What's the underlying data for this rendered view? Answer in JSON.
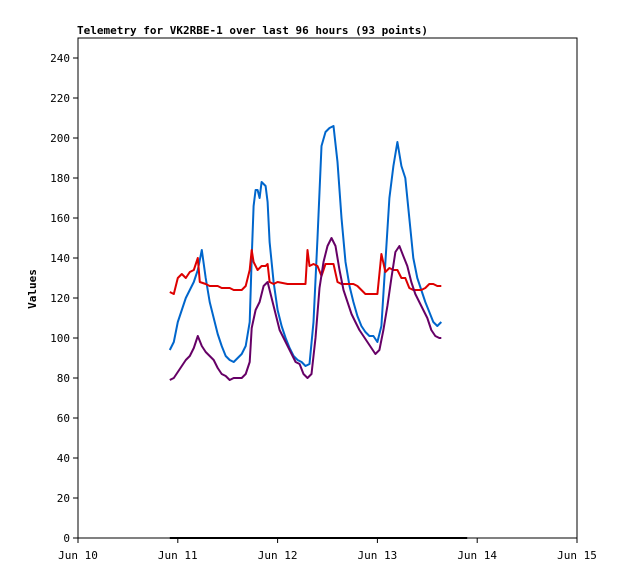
{
  "chart_data": {
    "type": "line",
    "title": "Telemetry for VK2RBE-1 over last 96 hours (93 points)",
    "xlabel": "",
    "ylabel": "Values",
    "xlim": [
      10,
      15
    ],
    "ylim": [
      0,
      250
    ],
    "x_ticks": [
      {
        "value": 10,
        "label": "Jun 10"
      },
      {
        "value": 11,
        "label": "Jun 11"
      },
      {
        "value": 12,
        "label": "Jun 12"
      },
      {
        "value": 13,
        "label": "Jun 13"
      },
      {
        "value": 14,
        "label": "Jun 14"
      },
      {
        "value": 15,
        "label": "Jun 15"
      }
    ],
    "y_ticks": [
      0,
      20,
      40,
      60,
      80,
      100,
      120,
      140,
      160,
      180,
      200,
      220,
      240
    ],
    "grid": false,
    "legend": "none",
    "series": [
      {
        "color": "#0066cc",
        "points": [
          [
            10.92,
            94
          ],
          [
            10.96,
            98
          ],
          [
            11.0,
            108
          ],
          [
            11.04,
            114
          ],
          [
            11.08,
            120
          ],
          [
            11.12,
            124
          ],
          [
            11.16,
            128
          ],
          [
            11.2,
            134
          ],
          [
            11.24,
            144
          ],
          [
            11.28,
            130
          ],
          [
            11.32,
            118
          ],
          [
            11.36,
            110
          ],
          [
            11.4,
            102
          ],
          [
            11.44,
            96
          ],
          [
            11.48,
            91
          ],
          [
            11.52,
            89
          ],
          [
            11.56,
            88
          ],
          [
            11.6,
            90
          ],
          [
            11.64,
            92
          ],
          [
            11.68,
            96
          ],
          [
            11.72,
            108
          ],
          [
            11.74,
            140
          ],
          [
            11.76,
            166
          ],
          [
            11.78,
            174
          ],
          [
            11.8,
            174
          ],
          [
            11.82,
            170
          ],
          [
            11.84,
            178
          ],
          [
            11.88,
            176
          ],
          [
            11.9,
            168
          ],
          [
            11.92,
            148
          ],
          [
            11.96,
            128
          ],
          [
            12.0,
            114
          ],
          [
            12.04,
            106
          ],
          [
            12.08,
            100
          ],
          [
            12.12,
            95
          ],
          [
            12.16,
            91
          ],
          [
            12.2,
            89
          ],
          [
            12.24,
            88
          ],
          [
            12.28,
            86
          ],
          [
            12.32,
            87
          ],
          [
            12.36,
            108
          ],
          [
            12.4,
            150
          ],
          [
            12.44,
            196
          ],
          [
            12.48,
            203
          ],
          [
            12.52,
            205
          ],
          [
            12.56,
            206
          ],
          [
            12.6,
            188
          ],
          [
            12.64,
            160
          ],
          [
            12.68,
            138
          ],
          [
            12.72,
            126
          ],
          [
            12.76,
            118
          ],
          [
            12.8,
            111
          ],
          [
            12.84,
            106
          ],
          [
            12.88,
            103
          ],
          [
            12.92,
            101
          ],
          [
            12.96,
            101
          ],
          [
            13.0,
            98
          ],
          [
            13.04,
            106
          ],
          [
            13.08,
            138
          ],
          [
            13.12,
            170
          ],
          [
            13.16,
            186
          ],
          [
            13.2,
            198
          ],
          [
            13.24,
            186
          ],
          [
            13.28,
            180
          ],
          [
            13.32,
            160
          ],
          [
            13.36,
            140
          ],
          [
            13.4,
            130
          ],
          [
            13.44,
            124
          ],
          [
            13.48,
            118
          ],
          [
            13.52,
            113
          ],
          [
            13.56,
            108
          ],
          [
            13.6,
            106
          ],
          [
            13.64,
            108
          ]
        ]
      },
      {
        "color": "#dd0000",
        "points": [
          [
            10.92,
            123
          ],
          [
            10.96,
            122
          ],
          [
            11.0,
            130
          ],
          [
            11.04,
            132
          ],
          [
            11.08,
            130
          ],
          [
            11.12,
            133
          ],
          [
            11.16,
            134
          ],
          [
            11.2,
            140
          ],
          [
            11.22,
            128
          ],
          [
            11.28,
            127
          ],
          [
            11.32,
            126
          ],
          [
            11.4,
            126
          ],
          [
            11.44,
            125
          ],
          [
            11.52,
            125
          ],
          [
            11.56,
            124
          ],
          [
            11.64,
            124
          ],
          [
            11.68,
            126
          ],
          [
            11.72,
            134
          ],
          [
            11.74,
            144
          ],
          [
            11.76,
            138
          ],
          [
            11.8,
            134
          ],
          [
            11.84,
            136
          ],
          [
            11.88,
            136
          ],
          [
            11.9,
            137
          ],
          [
            11.92,
            128
          ],
          [
            11.96,
            127
          ],
          [
            12.0,
            128
          ],
          [
            12.1,
            127
          ],
          [
            12.2,
            127
          ],
          [
            12.28,
            127
          ],
          [
            12.3,
            144
          ],
          [
            12.32,
            136
          ],
          [
            12.36,
            137
          ],
          [
            12.4,
            136
          ],
          [
            12.44,
            131
          ],
          [
            12.48,
            137
          ],
          [
            12.56,
            137
          ],
          [
            12.6,
            128
          ],
          [
            12.64,
            127
          ],
          [
            12.76,
            127
          ],
          [
            12.8,
            126
          ],
          [
            12.84,
            124
          ],
          [
            12.88,
            122
          ],
          [
            12.92,
            122
          ],
          [
            13.0,
            122
          ],
          [
            13.04,
            142
          ],
          [
            13.08,
            133
          ],
          [
            13.12,
            135
          ],
          [
            13.16,
            134
          ],
          [
            13.2,
            134
          ],
          [
            13.24,
            130
          ],
          [
            13.28,
            130
          ],
          [
            13.32,
            125
          ],
          [
            13.36,
            124
          ],
          [
            13.44,
            124
          ],
          [
            13.48,
            125
          ],
          [
            13.52,
            127
          ],
          [
            13.56,
            127
          ],
          [
            13.6,
            126
          ],
          [
            13.64,
            126
          ]
        ]
      },
      {
        "color": "#660066",
        "points": [
          [
            10.92,
            79
          ],
          [
            10.96,
            80
          ],
          [
            11.0,
            83
          ],
          [
            11.04,
            86
          ],
          [
            11.08,
            89
          ],
          [
            11.12,
            91
          ],
          [
            11.16,
            95
          ],
          [
            11.2,
            101
          ],
          [
            11.24,
            96
          ],
          [
            11.28,
            93
          ],
          [
            11.32,
            91
          ],
          [
            11.36,
            89
          ],
          [
            11.4,
            85
          ],
          [
            11.44,
            82
          ],
          [
            11.48,
            81
          ],
          [
            11.52,
            79
          ],
          [
            11.56,
            80
          ],
          [
            11.6,
            80
          ],
          [
            11.64,
            80
          ],
          [
            11.68,
            82
          ],
          [
            11.72,
            88
          ],
          [
            11.74,
            105
          ],
          [
            11.78,
            114
          ],
          [
            11.82,
            118
          ],
          [
            11.86,
            126
          ],
          [
            11.9,
            128
          ],
          [
            11.94,
            120
          ],
          [
            11.98,
            112
          ],
          [
            12.02,
            104
          ],
          [
            12.06,
            100
          ],
          [
            12.1,
            96
          ],
          [
            12.14,
            92
          ],
          [
            12.18,
            88
          ],
          [
            12.22,
            87
          ],
          [
            12.26,
            82
          ],
          [
            12.3,
            80
          ],
          [
            12.34,
            82
          ],
          [
            12.38,
            100
          ],
          [
            12.42,
            125
          ],
          [
            12.46,
            138
          ],
          [
            12.5,
            146
          ],
          [
            12.54,
            150
          ],
          [
            12.58,
            146
          ],
          [
            12.62,
            134
          ],
          [
            12.66,
            124
          ],
          [
            12.7,
            118
          ],
          [
            12.74,
            112
          ],
          [
            12.78,
            108
          ],
          [
            12.82,
            104
          ],
          [
            12.86,
            101
          ],
          [
            12.9,
            98
          ],
          [
            12.94,
            95
          ],
          [
            12.98,
            92
          ],
          [
            13.02,
            94
          ],
          [
            13.06,
            104
          ],
          [
            13.1,
            116
          ],
          [
            13.14,
            130
          ],
          [
            13.18,
            143
          ],
          [
            13.22,
            146
          ],
          [
            13.26,
            141
          ],
          [
            13.3,
            136
          ],
          [
            13.34,
            128
          ],
          [
            13.38,
            122
          ],
          [
            13.42,
            118
          ],
          [
            13.46,
            114
          ],
          [
            13.5,
            110
          ],
          [
            13.54,
            104
          ],
          [
            13.58,
            101
          ],
          [
            13.62,
            100
          ],
          [
            13.64,
            100
          ]
        ]
      },
      {
        "color": "#000000",
        "points": [
          [
            10.92,
            0
          ],
          [
            13.9,
            0
          ]
        ]
      }
    ]
  }
}
